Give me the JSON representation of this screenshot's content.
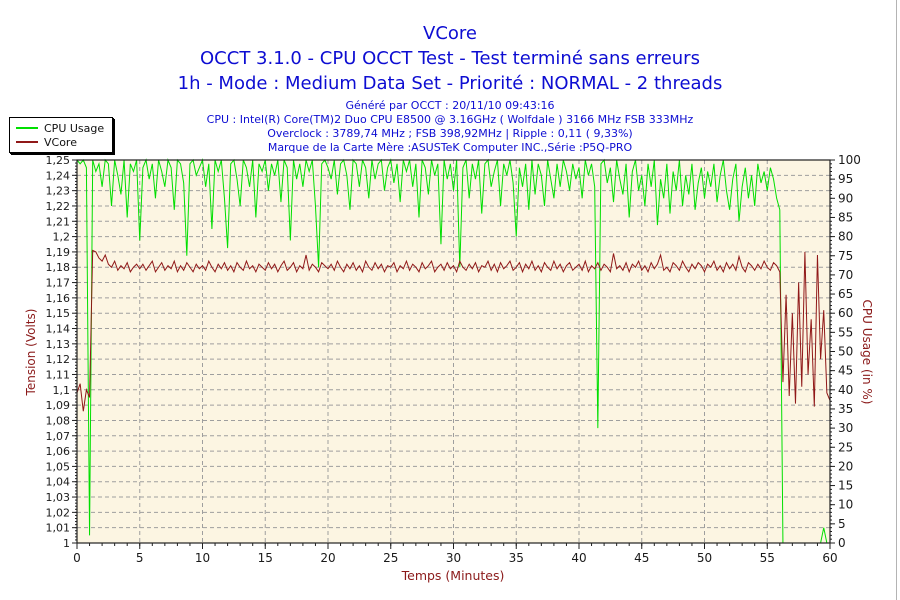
{
  "colors": {
    "title_blue": "#0D0DD2",
    "axis_maroon": "#8B1A1A",
    "window_edge": "#B4B4B4"
  },
  "header": {
    "title": "VCore",
    "subtitle1": "OCCT 3.1.0 - CPU OCCT Test - Test terminé sans erreurs",
    "subtitle2": "1h - Mode : Medium Data Set - Priorité : NORMAL - 2 threads",
    "info_lines": [
      "Généré par OCCT : 20/11/10 09:43:16",
      "CPU : Intel(R) Core(TM)2 Duo CPU E8500 @ 3.16GHz ( Wolfdale ) 3166 MHz FSB 333MHz",
      "Overclock : 3789,74 MHz ; FSB 398,92MHz | Ripple : 0,11 ( 9,33%)",
      "Marque de la Carte Mère :ASUSTeK Computer INC.,Série :P5Q-PRO"
    ]
  },
  "legend": {
    "items": [
      {
        "label": "CPU Usage",
        "color": "#00DF00"
      },
      {
        "label": "VCore",
        "color": "#901818"
      }
    ]
  },
  "chart_data": {
    "type": "line",
    "title": "VCore",
    "plot_bg": "#FCF5E2",
    "grid_color": "#9E9E9E",
    "axis_color": "#202020",
    "tick_text_color": "#1A1A1A",
    "x_axis": {
      "label": "Temps (Minutes)",
      "min": 0,
      "max": 60,
      "major_step": 5,
      "minor_step": 1
    },
    "y_left": {
      "label": "Tension (Volts)",
      "min": 1.0,
      "max": 1.25,
      "major_step": 0.01,
      "minor_step": 0.002,
      "decimal_comma": true
    },
    "y_right": {
      "label": "CPU Usage (in %)",
      "min": 0,
      "max": 100,
      "major_step": 5,
      "minor_step": 1
    },
    "legend_position": "top-left",
    "grid": "dashed",
    "series": [
      {
        "name": "CPU Usage",
        "axis": "right",
        "color": "#00DF00",
        "x0": 0,
        "dx": 0.25,
        "values": [
          100,
          99,
          100,
          98,
          2,
          100,
          97,
          99,
          93,
          100,
          99,
          88,
          100,
          96,
          91,
          100,
          85,
          99,
          97,
          100,
          79,
          98,
          100,
          95,
          99,
          90,
          100,
          97,
          93,
          100,
          98,
          87,
          100,
          99,
          94,
          75,
          99,
          100,
          96,
          98,
          100,
          93,
          99,
          82,
          100,
          97,
          100,
          90,
          77,
          99,
          100,
          95,
          88,
          100,
          98,
          93,
          100,
          85,
          99,
          97,
          100,
          92,
          99,
          96,
          100,
          89,
          100,
          98,
          79,
          100,
          95,
          99,
          93,
          100,
          97,
          100,
          88,
          72,
          99,
          100,
          98,
          95,
          100,
          91,
          99,
          100,
          96,
          87,
          100,
          99,
          93,
          100,
          98,
          90,
          100,
          95,
          99,
          100,
          92,
          98,
          100,
          94,
          99,
          89,
          100,
          97,
          100,
          93,
          99,
          85,
          100,
          98,
          91,
          100,
          96,
          99,
          78,
          100,
          95,
          99,
          92,
          100,
          72,
          98,
          100,
          90,
          99,
          95,
          100,
          86,
          99,
          100,
          93,
          97,
          100,
          88,
          99,
          96,
          100,
          94,
          80,
          98,
          93,
          99,
          87,
          100,
          91,
          99,
          96,
          88,
          100,
          95,
          90,
          99,
          93,
          100,
          97,
          92,
          99,
          95,
          98,
          90,
          100,
          96,
          99,
          93,
          30,
          99,
          100,
          94,
          98,
          89,
          100,
          95,
          91,
          99,
          85,
          97,
          100,
          92,
          96,
          88,
          99,
          93,
          100,
          83,
          95,
          90,
          99,
          86,
          97,
          92,
          100,
          88,
          96,
          91,
          99,
          87,
          94,
          98,
          90,
          97,
          93,
          99,
          89,
          96,
          100,
          92,
          87,
          95,
          99,
          84,
          93,
          98,
          90,
          96,
          88,
          99,
          94,
          97,
          92,
          98,
          95,
          90,
          87,
          0,
          0,
          0,
          0,
          0,
          0,
          0,
          0,
          0,
          0,
          0,
          0,
          0,
          4,
          0,
          0
        ]
      },
      {
        "name": "VCore",
        "axis": "left",
        "color": "#901818",
        "x0": 0,
        "dx": 0.25,
        "values": [
          1.098,
          1.104,
          1.086,
          1.1,
          1.095,
          1.191,
          1.19,
          1.186,
          1.184,
          1.188,
          1.182,
          1.18,
          1.184,
          1.178,
          1.181,
          1.179,
          1.183,
          1.177,
          1.18,
          1.182,
          1.179,
          1.182,
          1.178,
          1.181,
          1.184,
          1.177,
          1.18,
          1.183,
          1.178,
          1.181,
          1.179,
          1.184,
          1.177,
          1.181,
          1.178,
          1.183,
          1.18,
          1.177,
          1.182,
          1.179,
          1.181,
          1.178,
          1.184,
          1.18,
          1.177,
          1.182,
          1.179,
          1.183,
          1.178,
          1.181,
          1.177,
          1.183,
          1.18,
          1.178,
          1.184,
          1.179,
          1.181,
          1.177,
          1.182,
          1.18,
          1.178,
          1.183,
          1.179,
          1.182,
          1.177,
          1.181,
          1.184,
          1.178,
          1.18,
          1.183,
          1.177,
          1.181,
          1.179,
          1.188,
          1.178,
          1.182,
          1.18,
          1.177,
          1.183,
          1.181,
          1.179,
          1.182,
          1.178,
          1.184,
          1.18,
          1.177,
          1.182,
          1.179,
          1.183,
          1.178,
          1.181,
          1.177,
          1.184,
          1.18,
          1.178,
          1.183,
          1.179,
          1.182,
          1.177,
          1.181,
          1.18,
          1.183,
          1.177,
          1.181,
          1.179,
          1.184,
          1.178,
          1.182,
          1.18,
          1.177,
          1.183,
          1.179,
          1.181,
          1.184,
          1.177,
          1.18,
          1.182,
          1.178,
          1.183,
          1.179,
          1.181,
          1.177,
          1.184,
          1.18,
          1.178,
          1.182,
          1.179,
          1.183,
          1.177,
          1.181,
          1.18,
          1.184,
          1.178,
          1.182,
          1.177,
          1.183,
          1.179,
          1.181,
          1.184,
          1.178,
          1.18,
          1.183,
          1.177,
          1.182,
          1.179,
          1.184,
          1.178,
          1.181,
          1.177,
          1.183,
          1.18,
          1.178,
          1.184,
          1.179,
          1.182,
          1.177,
          1.181,
          1.183,
          1.178,
          1.18,
          1.182,
          1.178,
          1.184,
          1.177,
          1.181,
          1.179,
          1.183,
          1.178,
          1.182,
          1.18,
          1.177,
          1.189,
          1.179,
          1.181,
          1.178,
          1.183,
          1.177,
          1.182,
          1.18,
          1.184,
          1.178,
          1.181,
          1.177,
          1.183,
          1.179,
          1.182,
          1.188,
          1.178,
          1.18,
          1.177,
          1.183,
          1.181,
          1.178,
          1.184,
          1.18,
          1.177,
          1.182,
          1.179,
          1.183,
          1.181,
          1.177,
          1.182,
          1.18,
          1.184,
          1.178,
          1.181,
          1.177,
          1.183,
          1.179,
          1.182,
          1.178,
          1.187,
          1.18,
          1.177,
          1.183,
          1.181,
          1.178,
          1.182,
          1.179,
          1.184,
          1.18,
          1.178,
          1.183,
          1.181,
          1.177,
          1.105,
          1.162,
          1.096,
          1.15,
          1.091,
          1.17,
          1.102,
          1.19,
          1.11,
          1.146,
          1.089,
          1.188,
          1.12,
          1.152,
          1.098,
          1.093
        ]
      }
    ]
  }
}
